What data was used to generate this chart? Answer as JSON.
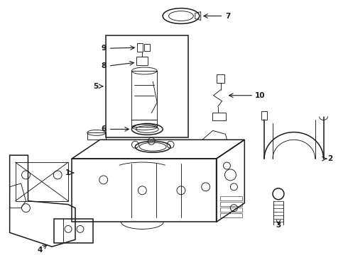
{
  "background_color": "#ffffff",
  "line_color": "#1a1a1a",
  "figsize": [
    4.9,
    3.6
  ],
  "dpi": 100,
  "lw_main": 1.1,
  "lw_thin": 0.65,
  "label_fontsize": 7.5
}
